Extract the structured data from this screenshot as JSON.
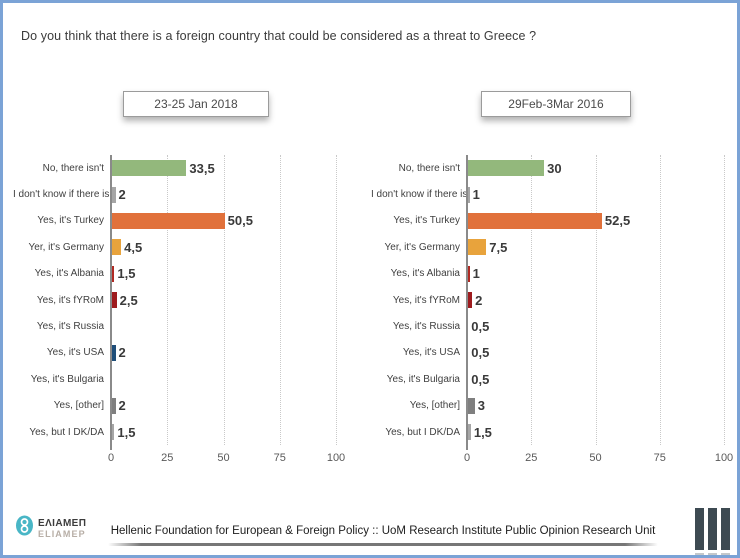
{
  "title": "Do you think that there is a foreign country that could be considered as a threat to Greece ?",
  "chart_data": [
    {
      "type": "bar",
      "orientation": "horizontal",
      "title": "23-25 Jan 2018",
      "categories": [
        "No, there isn't",
        "I don't know if there is",
        "Yes, it's Turkey",
        "Yer, it's Germany",
        "Yes, it's Albania",
        "Yes, it's fYRoM",
        "Yes, it's Russia",
        "Yes, it's USA",
        "Yes, it's Bulgaria",
        "Yes, [other]",
        "Yes, but I DK/DA"
      ],
      "values": [
        33.5,
        2,
        50.5,
        4.5,
        1.5,
        2.5,
        0,
        2,
        0,
        2,
        1.5
      ],
      "value_labels": [
        "33,5",
        "2",
        "50,5",
        "4,5",
        "1,5",
        "2,5",
        "",
        "2",
        "",
        "2",
        "1,5"
      ],
      "bar_colors": [
        "#93b87c",
        "#a6a6a6",
        "#e1713b",
        "#e8a33c",
        "#b02a23",
        "#9e1b1e",
        "",
        "#1f4e79",
        "",
        "#7f7f7f",
        "#a6a6a6"
      ],
      "xlabel": "",
      "ylabel": "",
      "xlim": [
        0,
        100
      ],
      "x_ticks": [
        "0",
        "25",
        "50",
        "75",
        "100"
      ],
      "grid": "vertical-dotted",
      "legend": "none"
    },
    {
      "type": "bar",
      "orientation": "horizontal",
      "title": "29Feb-3Mar 2016",
      "categories": [
        "No, there isn't",
        "I don't know if there is",
        "Yes, it's Turkey",
        "Yer, it's Germany",
        "Yes, it's Albania",
        "Yes, it's fYRoM",
        "Yes, it's Russia",
        "Yes, it's USA",
        "Yes, it's Bulgaria",
        "Yes, [other]",
        "Yes, but I DK/DA"
      ],
      "values": [
        30,
        1,
        52.5,
        7.5,
        1,
        2,
        0.5,
        0.5,
        0.5,
        3,
        1.5
      ],
      "value_labels": [
        "30",
        "1",
        "52,5",
        "7,5",
        "1",
        "2",
        "0,5",
        "0,5",
        "0,5",
        "3",
        "1,5"
      ],
      "bar_colors": [
        "#93b87c",
        "#a6a6a6",
        "#e1713b",
        "#e8a33c",
        "#b02a23",
        "#9e1b1e",
        "#31849b",
        "#1f4e79",
        "#6fa84f",
        "#7f7f7f",
        "#a6a6a6"
      ],
      "xlabel": "",
      "ylabel": "",
      "xlim": [
        0,
        100
      ],
      "x_ticks": [
        "0",
        "25",
        "50",
        "75",
        "100"
      ],
      "grid": "vertical-dotted",
      "legend": "none"
    }
  ],
  "footer": {
    "org_text": "Hellenic Foundation for European & Foreign Policy :: UoM Research Institute Public Opinion Research Unit",
    "logo_greek": "ΕΛΙΑΜΕΠ",
    "logo_latin": "ELIAMEP",
    "logo_color": "#49b6c6",
    "uom_logo_color": "#3d4a52"
  },
  "frame": {
    "border_color": "#7ba3d6"
  }
}
